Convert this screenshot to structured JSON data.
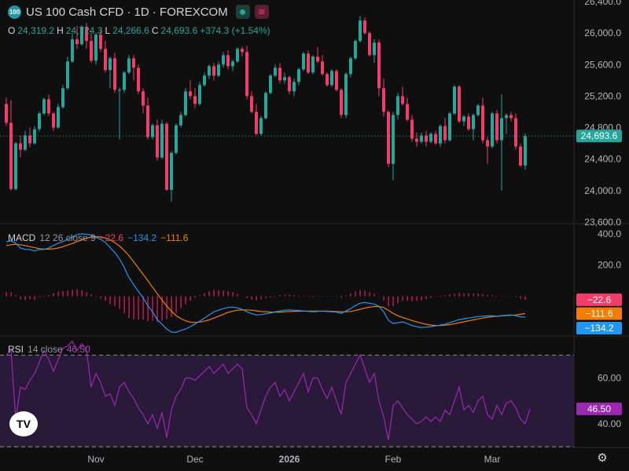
{
  "header": {
    "symbol_badge": "100",
    "title": "US 100 Cash CFD · 1D · FOREXCOM",
    "ohlc": {
      "o_label": "O",
      "o": "24,319.2",
      "h_label": "H",
      "h": "24,724.3",
      "l_label": "L",
      "l": "24,266.6",
      "c_label": "C",
      "c": "24,693.6",
      "change": "+374.3 (+1.54%)"
    }
  },
  "macd_legend": {
    "name": "MACD",
    "params": "12 26 close 9",
    "hist": "−22.6",
    "macd": "−134.2",
    "signal": "−111.6"
  },
  "rsi_legend": {
    "name": "RSI",
    "params": "14 close",
    "value": "46.50"
  },
  "colors": {
    "up": "#26a69a",
    "down": "#f23d6a",
    "macd": "#2962ff",
    "signal": "#f57c00",
    "hist": "#e91e63",
    "rsi": "#9c27b0",
    "rsi_band": "#2a1a3a",
    "grid": "#2a2a2a"
  },
  "icons": {
    "logo": "tradingview-logo-icon",
    "settings": "gear-icon"
  },
  "chart_data": [
    {
      "type": "candlestick",
      "title": "US 100 Cash CFD · 1D · FOREXCOM",
      "y_ticks": [
        "26,400.0",
        "26,000.0",
        "25,600.0",
        "25,200.0",
        "24,800.0",
        "24,400.0",
        "24,000.0",
        "23,600.0"
      ],
      "y_tick_values": [
        26400,
        26000,
        25600,
        25200,
        24800,
        24400,
        24000,
        23600
      ],
      "ylim": [
        23580,
        26420
      ],
      "x_ticks": [
        "Nov",
        "Dec",
        "2026",
        "Feb",
        "Mar"
      ],
      "x_tick_index": [
        19,
        40,
        60,
        82,
        103
      ],
      "last_price_label": "24,693.6",
      "last_price": 24693.6,
      "candles": [
        [
          25100,
          25180,
          24820,
          24860
        ],
        [
          24860,
          25150,
          24000,
          24020
        ],
        [
          24020,
          24620,
          24000,
          24600
        ],
        [
          24600,
          24700,
          24420,
          24520
        ],
        [
          24520,
          24760,
          24500,
          24700
        ],
        [
          24700,
          24800,
          24550,
          24600
        ],
        [
          24600,
          24820,
          24580,
          24780
        ],
        [
          24780,
          25000,
          24750,
          24980
        ],
        [
          24980,
          25180,
          24960,
          25160
        ],
        [
          25160,
          25220,
          24950,
          24980
        ],
        [
          24980,
          25000,
          24760,
          24800
        ],
        [
          24800,
          25100,
          24790,
          25060
        ],
        [
          25060,
          25340,
          25040,
          25300
        ],
        [
          25300,
          25700,
          25280,
          25640
        ],
        [
          25640,
          26000,
          25620,
          25920
        ],
        [
          25920,
          26090,
          25800,
          25860
        ],
        [
          25860,
          26100,
          25840,
          26080
        ],
        [
          26080,
          26130,
          25800,
          25900
        ],
        [
          25900,
          26000,
          25620,
          25650
        ],
        [
          25650,
          26000,
          25600,
          25980
        ],
        [
          25980,
          26050,
          25760,
          25800
        ],
        [
          25800,
          25900,
          25500,
          25530
        ],
        [
          25530,
          25700,
          25300,
          25680
        ],
        [
          25680,
          25750,
          25240,
          25280
        ],
        [
          25280,
          25310,
          24650,
          25280
        ],
        [
          25280,
          25520,
          25240,
          25500
        ],
        [
          25500,
          25720,
          25480,
          25680
        ],
        [
          25680,
          25720,
          25400,
          25560
        ],
        [
          25560,
          25600,
          25220,
          25260
        ],
        [
          25260,
          25300,
          24980,
          25080
        ],
        [
          25080,
          25180,
          24650,
          24680
        ],
        [
          24680,
          24850,
          24650,
          24830
        ],
        [
          24830,
          24900,
          24380,
          24420
        ],
        [
          24420,
          24900,
          24400,
          24850
        ],
        [
          24850,
          24870,
          24000,
          24010
        ],
        [
          24010,
          24500,
          23860,
          24480
        ],
        [
          24480,
          24850,
          24460,
          24830
        ],
        [
          24830,
          25000,
          24800,
          24960
        ],
        [
          24960,
          25300,
          24940,
          25260
        ],
        [
          25260,
          25400,
          25160,
          25200
        ],
        [
          25200,
          25300,
          25050,
          25100
        ],
        [
          25100,
          25380,
          25080,
          25340
        ],
        [
          25340,
          25500,
          25320,
          25460
        ],
        [
          25460,
          25600,
          25420,
          25580
        ],
        [
          25580,
          25620,
          25400,
          25460
        ],
        [
          25460,
          25640,
          25440,
          25600
        ],
        [
          25600,
          25760,
          25560,
          25720
        ],
        [
          25720,
          25780,
          25540,
          25580
        ],
        [
          25580,
          25660,
          25520,
          25640
        ],
        [
          25640,
          25820,
          25620,
          25800
        ],
        [
          25800,
          25830,
          25700,
          25760
        ],
        [
          25760,
          25840,
          25160,
          25200
        ],
        [
          25200,
          25260,
          24980,
          25000
        ],
        [
          25000,
          25100,
          24700,
          24720
        ],
        [
          24720,
          24950,
          24700,
          24920
        ],
        [
          24920,
          25260,
          24900,
          25240
        ],
        [
          25240,
          25480,
          25220,
          25460
        ],
        [
          25460,
          25600,
          25440,
          25560
        ],
        [
          25560,
          25620,
          25360,
          25400
        ],
        [
          25400,
          25500,
          25360,
          25440
        ],
        [
          25440,
          25460,
          25220,
          25260
        ],
        [
          25260,
          25420,
          25200,
          25380
        ],
        [
          25380,
          25560,
          25340,
          25540
        ],
        [
          25540,
          25760,
          25520,
          25740
        ],
        [
          25740,
          25780,
          25480,
          25500
        ],
        [
          25500,
          25720,
          25480,
          25700
        ],
        [
          25700,
          25820,
          25620,
          25640
        ],
        [
          25640,
          25720,
          25460,
          25480
        ],
        [
          25480,
          25500,
          25320,
          25340
        ],
        [
          25340,
          25540,
          25320,
          25520
        ],
        [
          25520,
          25540,
          25260,
          25280
        ],
        [
          25280,
          25300,
          24920,
          24960
        ],
        [
          24960,
          25500,
          24920,
          25480
        ],
        [
          25480,
          25700,
          25440,
          25680
        ],
        [
          25680,
          25920,
          25660,
          25900
        ],
        [
          25900,
          26220,
          25880,
          26160
        ],
        [
          26160,
          26200,
          25980,
          26000
        ],
        [
          26000,
          26020,
          25700,
          25720
        ],
        [
          25720,
          25920,
          25620,
          25880
        ],
        [
          25880,
          25920,
          25200,
          25300
        ],
        [
          25300,
          25420,
          24940,
          25000
        ],
        [
          25000,
          25020,
          24300,
          24340
        ],
        [
          24340,
          25000,
          24130,
          24960
        ],
        [
          24960,
          25240,
          24900,
          25200
        ],
        [
          25200,
          25320,
          25080,
          25100
        ],
        [
          25100,
          25180,
          24880,
          24900
        ],
        [
          24900,
          24960,
          24620,
          24660
        ],
        [
          24660,
          24740,
          24560,
          24620
        ],
        [
          24620,
          24740,
          24600,
          24700
        ],
        [
          24700,
          24760,
          24560,
          24620
        ],
        [
          24620,
          24740,
          24600,
          24720
        ],
        [
          24720,
          24760,
          24580,
          24600
        ],
        [
          24600,
          24840,
          24560,
          24820
        ],
        [
          24820,
          24920,
          24600,
          24640
        ],
        [
          24640,
          25000,
          24620,
          24980
        ],
        [
          24980,
          25340,
          24960,
          25320
        ],
        [
          25320,
          25340,
          24860,
          24880
        ],
        [
          24880,
          24960,
          24820,
          24940
        ],
        [
          24940,
          24980,
          24760,
          24780
        ],
        [
          24780,
          24980,
          24640,
          24960
        ],
        [
          24960,
          25100,
          24940,
          25080
        ],
        [
          25080,
          25180,
          24600,
          24640
        ],
        [
          24640,
          24680,
          24340,
          24560
        ],
        [
          24560,
          25000,
          24540,
          24980
        ],
        [
          24980,
          25020,
          24600,
          24640
        ],
        [
          24640,
          25220,
          24000,
          24920
        ],
        [
          24920,
          24980,
          24720,
          24960
        ],
        [
          24960,
          25000,
          24880,
          24920
        ],
        [
          24920,
          24980,
          24520,
          24560
        ],
        [
          24560,
          24600,
          24300,
          24319.2
        ],
        [
          24319.2,
          24724.3,
          24266.6,
          24693.6
        ]
      ]
    },
    {
      "type": "line",
      "title": "MACD 12 26 close 9",
      "y_ticks": [
        "400.0",
        "200.0"
      ],
      "y_tick_values": [
        400,
        200
      ],
      "ylim": [
        -250,
        460
      ],
      "last_labels": [
        "−22.6",
        "−111.6",
        "−134.2"
      ],
      "series": [
        {
          "name": "MACD",
          "values": [
            350,
            355,
            340,
            310,
            300,
            300,
            290,
            300,
            300,
            310,
            325,
            340,
            350,
            365,
            380,
            395,
            400,
            398,
            392,
            378,
            365,
            345,
            312,
            280,
            240,
            185,
            120,
            75,
            30,
            -10,
            -60,
            -100,
            -150,
            -180,
            -210,
            -230,
            -232,
            -220,
            -210,
            -195,
            -178,
            -160,
            -140,
            -120,
            -100,
            -90,
            -80,
            -72,
            -70,
            -75,
            -85,
            -100,
            -112,
            -120,
            -118,
            -113,
            -108,
            -100,
            -95,
            -90,
            -88,
            -90,
            -92,
            -95,
            -97,
            -100,
            -98,
            -95,
            -98,
            -100,
            -102,
            -110,
            -95,
            -80,
            -60,
            -45,
            -40,
            -45,
            -50,
            -65,
            -100,
            -155,
            -175,
            -170,
            -165,
            -175,
            -188,
            -195,
            -200,
            -198,
            -195,
            -190,
            -185,
            -180,
            -170,
            -160,
            -150,
            -145,
            -140,
            -135,
            -130,
            -128,
            -126,
            -125,
            -128,
            -125,
            -122,
            -120,
            -125,
            -132,
            -134.2
          ]
        },
        {
          "name": "Signal",
          "values": [
            325,
            330,
            333,
            330,
            325,
            318,
            312,
            305,
            302,
            302,
            304,
            309,
            318,
            328,
            338,
            350,
            362,
            372,
            380,
            382,
            380,
            374,
            362,
            344,
            322,
            294,
            260,
            222,
            180,
            140,
            100,
            58,
            16,
            -24,
            -62,
            -96,
            -124,
            -144,
            -158,
            -166,
            -168,
            -166,
            -160,
            -152,
            -140,
            -128,
            -116,
            -104,
            -96,
            -90,
            -88,
            -88,
            -90,
            -94,
            -98,
            -100,
            -102,
            -102,
            -102,
            -100,
            -98,
            -97,
            -96,
            -96,
            -96,
            -96,
            -96,
            -96,
            -96,
            -97,
            -98,
            -100,
            -100,
            -98,
            -92,
            -84,
            -76,
            -70,
            -66,
            -66,
            -72,
            -90,
            -110,
            -125,
            -136,
            -146,
            -156,
            -165,
            -173,
            -180,
            -185,
            -188,
            -188,
            -186,
            -182,
            -176,
            -170,
            -164,
            -158,
            -152,
            -146,
            -140,
            -135,
            -131,
            -128,
            -126,
            -124,
            -122,
            -120,
            -116,
            -111.6
          ]
        }
      ],
      "histogram": [
        25,
        25,
        7,
        -20,
        -25,
        -18,
        -22,
        -5,
        -2,
        8,
        21,
        31,
        32,
        37,
        42,
        45,
        38,
        26,
        12,
        -4,
        -15,
        -29,
        -50,
        -64,
        -82,
        -109,
        -140,
        -147,
        -150,
        -150,
        -160,
        -158,
        -166,
        -156,
        -148,
        -134,
        -108,
        -76,
        -52,
        -29,
        -10,
        6,
        20,
        32,
        40,
        38,
        36,
        32,
        26,
        15,
        3,
        -12,
        -22,
        -26,
        -20,
        -13,
        -6,
        2,
        7,
        10,
        10,
        7,
        4,
        1,
        -1,
        -4,
        -2,
        1,
        -2,
        -3,
        -4,
        -10,
        5,
        18,
        32,
        39,
        36,
        25,
        16,
        1,
        -28,
        -65,
        -65,
        -45,
        -29,
        -29,
        -32,
        -30,
        -27,
        -18,
        -10,
        -2,
        3,
        6,
        12,
        16,
        20,
        19,
        18,
        17,
        16,
        12,
        9,
        6,
        0,
        1,
        2,
        2,
        -5,
        -16,
        -22.6
      ]
    },
    {
      "type": "line",
      "title": "RSI 14 close",
      "y_ticks": [
        "60.00",
        "40.00"
      ],
      "y_tick_values": [
        60,
        40
      ],
      "ylim": [
        30,
        78
      ],
      "band": [
        30,
        70
      ],
      "last_label": "46.50",
      "series": [
        {
          "name": "RSI",
          "values": [
            70,
            72,
            42,
            56,
            55,
            59,
            62,
            67,
            72,
            68,
            63,
            68,
            73,
            74,
            76,
            72,
            75,
            72,
            56,
            62,
            58,
            52,
            53,
            48,
            56,
            58,
            54,
            51,
            47,
            44,
            40,
            44,
            38,
            45,
            34,
            46,
            52,
            55,
            60,
            60,
            59,
            61,
            63,
            65,
            62,
            64,
            66,
            62,
            64,
            66,
            64,
            47,
            44,
            40,
            46,
            52,
            56,
            58,
            52,
            55,
            50,
            54,
            58,
            62,
            54,
            60,
            60,
            55,
            51,
            56,
            50,
            44,
            58,
            62,
            66,
            70,
            64,
            58,
            62,
            50,
            43,
            33,
            48,
            50,
            47,
            44,
            42,
            40,
            41,
            43,
            41,
            43,
            41,
            46,
            44,
            50,
            56,
            46,
            48,
            45,
            50,
            52,
            44,
            42,
            48,
            44,
            49,
            50,
            47,
            42,
            40,
            46.5
          ]
        }
      ]
    }
  ]
}
